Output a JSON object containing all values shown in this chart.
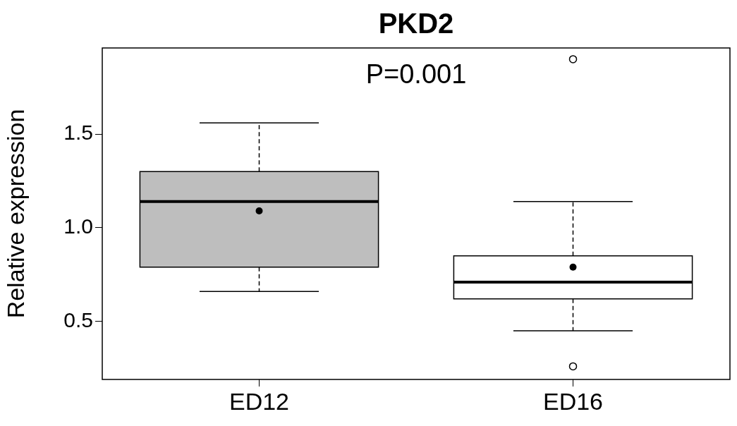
{
  "chart_data": {
    "type": "box",
    "title": "PKD2",
    "ylabel": "Relative expression",
    "categories": [
      "ED12",
      "ED16"
    ],
    "colors": [
      "#bebebe",
      "#ffffff"
    ],
    "boxes": [
      {
        "low": 0.66,
        "q1": 0.79,
        "median": 1.14,
        "q3": 1.3,
        "high": 1.56,
        "mean": 1.09
      },
      {
        "low": 0.45,
        "q1": 0.62,
        "median": 0.71,
        "q3": 0.85,
        "high": 1.14,
        "mean": 0.79,
        "outliers": [
          1.9,
          0.26
        ]
      }
    ],
    "ylim": [
      0.19,
      1.96
    ],
    "yticks": [
      0.5,
      {
        "value": 1,
        "label": "1.0"
      },
      1.5
    ],
    "annotations": [
      "P=0.001"
    ],
    "grid": false,
    "legend": false
  }
}
